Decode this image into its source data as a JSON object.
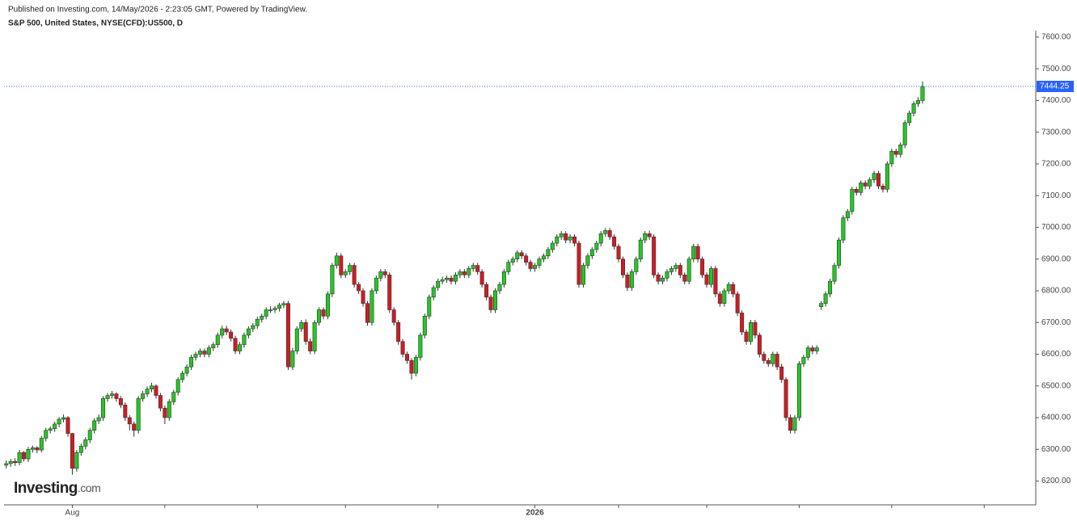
{
  "chart_data": {
    "type": "candlestick",
    "header": "Published on Investing.com, 14/May/2026 - 2:23:05 GMT, Powered by TradingView.",
    "title": "S&P 500, United States, NYSE(CFD):US500, D",
    "logo": {
      "brand": "Investing",
      "suffix": ".com"
    },
    "up_color": "#22c822",
    "down_color": "#d11b24",
    "last_price": 7444.25,
    "last_price_label": "7444.25",
    "last_price_color": "#2962ff",
    "xlim": [
      -0.5,
      233.7
    ],
    "xticks": [
      {
        "value": 15,
        "label": "Aug"
      },
      {
        "value": 120,
        "label": "2026"
      }
    ],
    "xticks_minor": [
      36,
      57,
      77,
      98,
      139,
      159,
      180,
      201,
      222
    ],
    "ylim": [
      6125,
      7620
    ],
    "yticks": [
      {
        "value": 6200,
        "label": "6200.00"
      },
      {
        "value": 6300,
        "label": "6300.00"
      },
      {
        "value": 6400,
        "label": "6400.00"
      },
      {
        "value": 6500,
        "label": "6500.00"
      },
      {
        "value": 6600,
        "label": "6600.00"
      },
      {
        "value": 6700,
        "label": "6700.00"
      },
      {
        "value": 6800,
        "label": "6800.00"
      },
      {
        "value": 6900,
        "label": "6900.00"
      },
      {
        "value": 7000,
        "label": "7000.00"
      },
      {
        "value": 7100,
        "label": "7100.00"
      },
      {
        "value": 7200,
        "label": "7200.00"
      },
      {
        "value": 7300,
        "label": "7300.00"
      },
      {
        "value": 7400,
        "label": "7400.00"
      },
      {
        "value": 7500,
        "label": "7500.00"
      },
      {
        "value": 7600,
        "label": "7600.00"
      }
    ],
    "open": [
      6250,
      6255,
      6262,
      6258,
      6290,
      6270,
      6300,
      6305,
      6298,
      6335,
      6360,
      6365,
      6380,
      6395,
      6400,
      6350,
      6240,
      6290,
      6310,
      6330,
      6360,
      6390,
      6400,
      6460,
      6470,
      6475,
      6460,
      6440,
      6400,
      6380,
      6360,
      6460,
      6475,
      6490,
      6500,
      6470,
      6430,
      6400,
      6450,
      6480,
      6520,
      6540,
      6560,
      6590,
      6600,
      6610,
      6600,
      6620,
      6630,
      6660,
      6680,
      6670,
      6650,
      6610,
      6630,
      6660,
      6680,
      6690,
      6710,
      6720,
      6740,
      6740,
      6745,
      6755,
      6760,
      6560,
      6610,
      6680,
      6700,
      6640,
      6610,
      6700,
      6740,
      6720,
      6790,
      6880,
      6910,
      6850,
      6860,
      6880,
      6820,
      6800,
      6760,
      6700,
      6800,
      6840,
      6860,
      6850,
      6740,
      6700,
      6640,
      6600,
      6580,
      6540,
      6590,
      6660,
      6720,
      6780,
      6810,
      6830,
      6835,
      6840,
      6830,
      6850,
      6860,
      6850,
      6870,
      6880,
      6860,
      6820,
      6780,
      6740,
      6800,
      6820,
      6860,
      6890,
      6900,
      6920,
      6910,
      6890,
      6870,
      6880,
      6900,
      6910,
      6930,
      6950,
      6970,
      6980,
      6960,
      6970,
      6950,
      6820,
      6880,
      6910,
      6930,
      6950,
      6980,
      6990,
      6970,
      6940,
      6900,
      6850,
      6810,
      6860,
      6900,
      6960,
      6980,
      6970,
      6850,
      6830,
      6840,
      6860,
      6870,
      6880,
      6850,
      6830,
      6900,
      6940,
      6900,
      6850,
      6820,
      6870,
      6790,
      6760,
      6800,
      6820,
      6790,
      6730,
      6670,
      6640,
      6700,
      6660,
      6600,
      6580,
      6570,
      6600,
      6560,
      6520,
      6400,
      6360,
      6400,
      6570,
      6590,
      6620,
      6610,
      6750,
      6760,
      6790,
      6830,
      6880,
      6960,
      7030,
      7050,
      7120,
      7110,
      7140,
      7130,
      7150,
      7170,
      7130,
      7120,
      7200,
      7240,
      7230,
      7260,
      7330,
      7360,
      7390,
      7400
    ],
    "high": [
      6265,
      6270,
      6272,
      6298,
      6295,
      6308,
      6312,
      6310,
      6342,
      6368,
      6372,
      6388,
      6402,
      6410,
      6405,
      6352,
      6298,
      6318,
      6338,
      6368,
      6398,
      6410,
      6468,
      6478,
      6484,
      6480,
      6468,
      6448,
      6408,
      6388,
      6468,
      6484,
      6498,
      6510,
      6505,
      6478,
      6438,
      6458,
      6488,
      6528,
      6548,
      6568,
      6598,
      6608,
      6618,
      6618,
      6628,
      6638,
      6668,
      6690,
      6690,
      6678,
      6658,
      6638,
      6668,
      6688,
      6698,
      6718,
      6728,
      6748,
      6752,
      6752,
      6762,
      6768,
      6768,
      6620,
      6688,
      6708,
      6710,
      6650,
      6708,
      6748,
      6748,
      6798,
      6888,
      6920,
      6918,
      6868,
      6888,
      6888,
      6828,
      6808,
      6768,
      6808,
      6848,
      6868,
      6868,
      6858,
      6748,
      6708,
      6648,
      6608,
      6588,
      6598,
      6668,
      6728,
      6788,
      6818,
      6838,
      6845,
      6848,
      6848,
      6858,
      6868,
      6868,
      6878,
      6888,
      6888,
      6868,
      6828,
      6788,
      6808,
      6828,
      6868,
      6898,
      6908,
      6928,
      6928,
      6918,
      6898,
      6888,
      6908,
      6918,
      6938,
      6958,
      6978,
      6988,
      6988,
      6978,
      6978,
      6958,
      6888,
      6918,
      6938,
      6958,
      6988,
      6998,
      6998,
      6978,
      6948,
      6908,
      6858,
      6868,
      6908,
      6968,
      6988,
      6990,
      6978,
      6858,
      6848,
      6868,
      6878,
      6888,
      6888,
      6858,
      6908,
      6948,
      6948,
      6908,
      6858,
      6878,
      6878,
      6798,
      6808,
      6828,
      6828,
      6798,
      6738,
      6678,
      6708,
      6708,
      6668,
      6608,
      6588,
      6608,
      6608,
      6570,
      6528,
      6410,
      6408,
      6578,
      6598,
      6628,
      6628,
      6628,
      6768,
      6798,
      6838,
      6888,
      6968,
      7038,
      7058,
      7128,
      7128,
      7148,
      7148,
      7158,
      7178,
      7178,
      7138,
      7208,
      7248,
      7248,
      7268,
      7338,
      7368,
      7398,
      7410,
      7460
    ],
    "low": [
      6240,
      6245,
      6248,
      6250,
      6262,
      6260,
      6290,
      6288,
      6290,
      6325,
      6350,
      6355,
      6370,
      6385,
      6340,
      6220,
      6230,
      6280,
      6300,
      6320,
      6350,
      6380,
      6390,
      6450,
      6460,
      6450,
      6430,
      6390,
      6360,
      6340,
      6350,
      6450,
      6465,
      6480,
      6460,
      6420,
      6380,
      6390,
      6440,
      6470,
      6510,
      6530,
      6550,
      6580,
      6590,
      6590,
      6590,
      6610,
      6620,
      6650,
      6660,
      6640,
      6600,
      6600,
      6620,
      6650,
      6670,
      6680,
      6700,
      6710,
      6730,
      6730,
      6735,
      6745,
      6550,
      6550,
      6600,
      6670,
      6630,
      6600,
      6600,
      6690,
      6710,
      6710,
      6780,
      6870,
      6840,
      6840,
      6850,
      6810,
      6790,
      6750,
      6690,
      6690,
      6790,
      6830,
      6840,
      6730,
      6690,
      6630,
      6590,
      6570,
      6520,
      6530,
      6580,
      6650,
      6710,
      6770,
      6800,
      6820,
      6825,
      6820,
      6820,
      6840,
      6840,
      6840,
      6860,
      6850,
      6810,
      6770,
      6730,
      6730,
      6790,
      6810,
      6850,
      6880,
      6890,
      6900,
      6880,
      6860,
      6860,
      6870,
      6890,
      6900,
      6920,
      6940,
      6960,
      6950,
      6950,
      6940,
      6810,
      6810,
      6870,
      6900,
      6920,
      6940,
      6970,
      6960,
      6930,
      6890,
      6840,
      6800,
      6800,
      6850,
      6890,
      6950,
      6960,
      6840,
      6820,
      6820,
      6830,
      6850,
      6860,
      6840,
      6820,
      6820,
      6890,
      6890,
      6840,
      6810,
      6810,
      6780,
      6750,
      6750,
      6790,
      6780,
      6720,
      6660,
      6630,
      6630,
      6650,
      6590,
      6570,
      6560,
      6560,
      6550,
      6510,
      6390,
      6350,
      6350,
      6390,
      6560,
      6580,
      6600,
      6600,
      6740,
      6750,
      6780,
      6820,
      6870,
      6950,
      7020,
      7040,
      7100,
      7100,
      7120,
      7120,
      7140,
      7120,
      7110,
      7110,
      7190,
      7220,
      7220,
      7250,
      7320,
      7350,
      7380,
      7390
    ],
    "close": [
      6255,
      6262,
      6258,
      6290,
      6270,
      6300,
      6305,
      6298,
      6335,
      6360,
      6365,
      6380,
      6395,
      6400,
      6350,
      6240,
      6290,
      6310,
      6330,
      6360,
      6390,
      6400,
      6460,
      6470,
      6475,
      6460,
      6440,
      6400,
      6380,
      6360,
      6460,
      6475,
      6490,
      6500,
      6470,
      6430,
      6400,
      6450,
      6480,
      6520,
      6540,
      6560,
      6590,
      6600,
      6610,
      6600,
      6620,
      6630,
      6660,
      6680,
      6670,
      6650,
      6610,
      6630,
      6660,
      6680,
      6690,
      6710,
      6720,
      6740,
      6740,
      6745,
      6755,
      6760,
      6560,
      6610,
      6680,
      6700,
      6640,
      6610,
      6700,
      6740,
      6720,
      6790,
      6880,
      6910,
      6850,
      6860,
      6880,
      6820,
      6800,
      6760,
      6700,
      6800,
      6840,
      6860,
      6850,
      6740,
      6700,
      6640,
      6600,
      6580,
      6540,
      6590,
      6660,
      6720,
      6780,
      6810,
      6830,
      6835,
      6840,
      6830,
      6850,
      6860,
      6850,
      6870,
      6880,
      6860,
      6820,
      6780,
      6740,
      6800,
      6820,
      6860,
      6890,
      6900,
      6920,
      6910,
      6890,
      6870,
      6880,
      6900,
      6910,
      6930,
      6950,
      6970,
      6980,
      6960,
      6970,
      6950,
      6820,
      6880,
      6910,
      6930,
      6950,
      6980,
      6990,
      6970,
      6940,
      6900,
      6850,
      6810,
      6860,
      6900,
      6960,
      6980,
      6970,
      6850,
      6830,
      6840,
      6860,
      6870,
      6880,
      6850,
      6830,
      6900,
      6940,
      6900,
      6850,
      6820,
      6870,
      6790,
      6760,
      6800,
      6820,
      6790,
      6730,
      6670,
      6640,
      6700,
      6660,
      6600,
      6580,
      6570,
      6600,
      6560,
      6520,
      6400,
      6360,
      6400,
      6570,
      6590,
      6620,
      6610,
      6620,
      6760,
      6790,
      6830,
      6880,
      6960,
      7030,
      7050,
      7120,
      7110,
      7140,
      7130,
      7150,
      7170,
      7130,
      7120,
      7200,
      7240,
      7230,
      7260,
      7330,
      7360,
      7390,
      7400,
      7444.25
    ]
  }
}
